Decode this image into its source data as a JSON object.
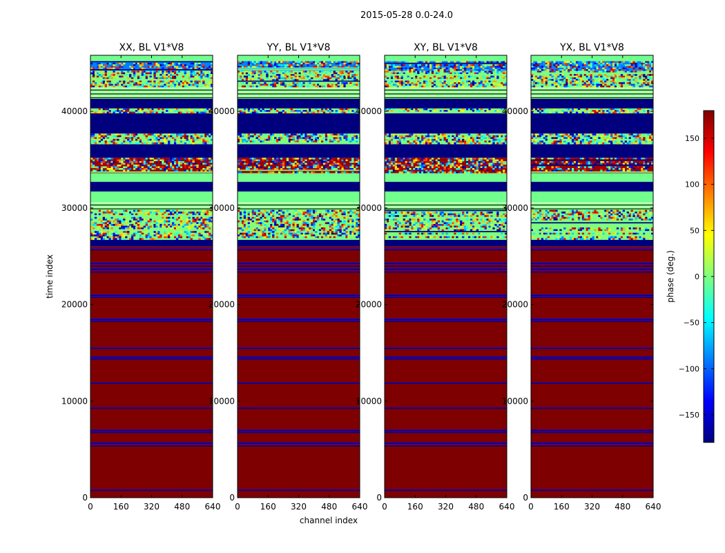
{
  "figure": {
    "suptitle": "2015-05-28 0.0-24.0",
    "shared_xlabel": "channel index",
    "shared_ylabel": "time index"
  },
  "colormap": {
    "name": "jet",
    "stops": [
      "#00007f",
      "#0000ff",
      "#007fff",
      "#00ffff",
      "#7fff7f",
      "#ffff00",
      "#ff7f00",
      "#ff0000",
      "#7f0000"
    ]
  },
  "chart_data": [
    {
      "type": "heatmap",
      "title": "XX, BL V1*V8",
      "xlabel": "",
      "ylabel": "time index",
      "xlim": [
        0,
        640
      ],
      "ylim": [
        0,
        45800
      ],
      "xticks": [
        "0",
        "160",
        "320",
        "480",
        "640"
      ],
      "yticks": [
        "0",
        "10000",
        "20000",
        "30000",
        "40000"
      ],
      "colorbar": {
        "label": "phase (deg.)",
        "range": [
          -180,
          180
        ],
        "ticks": [
          "150",
          "100",
          "50",
          "0",
          "−50",
          "−100",
          "−150"
        ]
      }
    },
    {
      "type": "heatmap",
      "title": "YY, BL V1*V8",
      "xlabel": "channel index",
      "xlim": [
        0,
        640
      ],
      "ylim": [
        0,
        45800
      ],
      "xticks": [
        "0",
        "160",
        "320",
        "480",
        "640"
      ],
      "yticks": [
        "0",
        "10000",
        "20000",
        "30000",
        "40000"
      ]
    },
    {
      "type": "heatmap",
      "title": "XY, BL V1*V8",
      "xlabel": "",
      "xlim": [
        0,
        640
      ],
      "ylim": [
        0,
        45800
      ],
      "xticks": [
        "0",
        "160",
        "320",
        "480",
        "640"
      ],
      "yticks": [
        "0",
        "10000",
        "20000",
        "30000",
        "40000"
      ]
    },
    {
      "type": "heatmap",
      "title": "YX, BL V1*V8",
      "xlabel": "",
      "xlim": [
        0,
        640
      ],
      "ylim": [
        0,
        45800
      ],
      "xticks": [
        "0",
        "160",
        "320",
        "480",
        "640"
      ],
      "yticks": [
        "0",
        "10000",
        "20000",
        "30000",
        "40000"
      ]
    }
  ],
  "time_bands": [
    {
      "from": 0,
      "to": 26000,
      "phase": 180,
      "pattern": "solid"
    },
    {
      "from": 26000,
      "to": 26700,
      "phase": -180,
      "pattern": "solid"
    },
    {
      "from": 26700,
      "to": 29800,
      "phase": 0,
      "pattern": "noise"
    },
    {
      "from": 29800,
      "to": 30600,
      "phase": 0,
      "pattern": "lines"
    },
    {
      "from": 30600,
      "to": 31700,
      "phase": -5,
      "pattern": "solid"
    },
    {
      "from": 31700,
      "to": 32700,
      "phase": -180,
      "pattern": "solid"
    },
    {
      "from": 32700,
      "to": 33600,
      "phase": -5,
      "pattern": "solid"
    },
    {
      "from": 33600,
      "to": 35200,
      "phase": 170,
      "pattern": "noise"
    },
    {
      "from": 35200,
      "to": 36600,
      "phase": -180,
      "pattern": "solid"
    },
    {
      "from": 36600,
      "to": 37700,
      "phase": 0,
      "pattern": "noise"
    },
    {
      "from": 37700,
      "to": 39800,
      "phase": -180,
      "pattern": "solid"
    },
    {
      "from": 39800,
      "to": 40300,
      "phase": 0,
      "pattern": "noise"
    },
    {
      "from": 40300,
      "to": 41300,
      "phase": -180,
      "pattern": "solid"
    },
    {
      "from": 41300,
      "to": 42500,
      "phase": 0,
      "pattern": "lines"
    },
    {
      "from": 42500,
      "to": 44200,
      "phase": 0,
      "pattern": "noise"
    },
    {
      "from": 44200,
      "to": 45200,
      "phase": -90,
      "pattern": "noise"
    },
    {
      "from": 45200,
      "to": 45800,
      "phase": -5,
      "pattern": "solid"
    }
  ],
  "flag_lines": [
    800,
    5400,
    5700,
    6800,
    7000,
    9300,
    11900,
    14400,
    14600,
    15500,
    18300,
    18500,
    20800,
    21000,
    23400,
    23700,
    24000,
    24300,
    25700
  ]
}
